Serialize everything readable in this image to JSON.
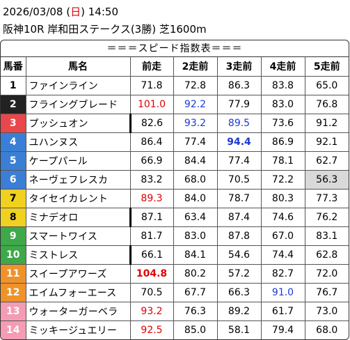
{
  "header": {
    "date": "2026/03/08",
    "day_open": "(",
    "day": "日",
    "day_close": ")",
    "time": "14:50",
    "race": "阪神10R 岸和田ステークス(3勝) 芝1600m"
  },
  "banner": "＝＝＝スピード指数表＝＝＝",
  "columns": [
    "馬番",
    "馬名",
    "前走",
    "2走前",
    "3走前",
    "4走前",
    "5走前"
  ],
  "colors": {
    "frame1": "#ffffff",
    "frame2": "#222222",
    "frame3": "#e8474b",
    "frame4": "#3a7fd5",
    "frame5": "#f0d020",
    "frame6": "#3ea84a",
    "frame7": "#f0922a",
    "frame8": "#f49cb4",
    "red": "#e00000",
    "blue": "#1a3ad6",
    "highlight": "#d9d9d9"
  },
  "rows": [
    {
      "no": "1",
      "name": "ファインライン",
      "v": [
        "71.8",
        "72.8",
        "86.3",
        "83.8",
        "65.0"
      ]
    },
    {
      "no": "2",
      "name": "フライングブレード",
      "v": [
        "101.0",
        "92.2",
        "77.9",
        "83.0",
        "76.8"
      ]
    },
    {
      "no": "3",
      "name": "プッシュオン",
      "v": [
        "82.6",
        "93.2",
        "89.5",
        "73.6",
        "91.2"
      ]
    },
    {
      "no": "4",
      "name": "ユハンヌス",
      "v": [
        "86.4",
        "77.4",
        "94.4",
        "86.9",
        "92.1"
      ]
    },
    {
      "no": "5",
      "name": "ケープパール",
      "v": [
        "66.9",
        "84.4",
        "77.4",
        "78.1",
        "62.7"
      ]
    },
    {
      "no": "6",
      "name": "ネーヴェフレスカ",
      "v": [
        "83.2",
        "68.0",
        "70.5",
        "72.2",
        "56.3"
      ]
    },
    {
      "no": "7",
      "name": "タイセイカレント",
      "v": [
        "89.3",
        "84.0",
        "78.7",
        "80.3",
        "77.3"
      ]
    },
    {
      "no": "8",
      "name": "ミナデオロ",
      "v": [
        "87.1",
        "63.4",
        "87.4",
        "74.6",
        "76.2"
      ]
    },
    {
      "no": "9",
      "name": "スマートワイス",
      "v": [
        "81.7",
        "83.0",
        "87.8",
        "67.0",
        "83.1"
      ]
    },
    {
      "no": "10",
      "name": "ミストレス",
      "v": [
        "66.1",
        "84.1",
        "54.6",
        "74.4",
        "62.8"
      ]
    },
    {
      "no": "11",
      "name": "スイープアワーズ",
      "v": [
        "104.8",
        "80.2",
        "57.2",
        "82.7",
        "72.0"
      ]
    },
    {
      "no": "12",
      "name": "エイムフォーエース",
      "v": [
        "70.5",
        "67.7",
        "66.3",
        "91.0",
        "76.7"
      ]
    },
    {
      "no": "13",
      "name": "ウォーターガーベラ",
      "v": [
        "93.2",
        "76.3",
        "89.2",
        "61.7",
        "73.0"
      ]
    },
    {
      "no": "14",
      "name": "ミッキージュエリー",
      "v": [
        "92.5",
        "85.0",
        "58.1",
        "79.4",
        "68.0"
      ]
    }
  ]
}
